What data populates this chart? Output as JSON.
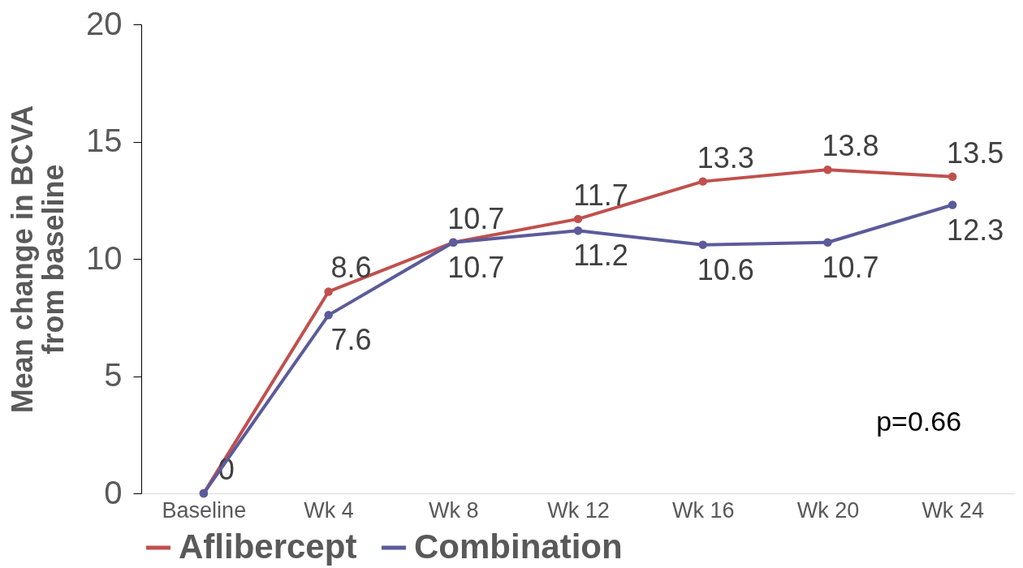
{
  "chart_data": {
    "type": "line",
    "ylabel": "Mean change in BCVA from baseline",
    "categories": [
      "Baseline",
      "Wk 4",
      "Wk 8",
      "Wk 12",
      "Wk 16",
      "Wk 20",
      "Wk 24"
    ],
    "series": [
      {
        "name": "Aflibercept",
        "color": "#c0504d",
        "values": [
          0,
          8.6,
          10.7,
          11.7,
          13.3,
          13.8,
          13.5
        ],
        "value_labels": [
          "0",
          "8.6",
          "10.7",
          "11.7",
          "13.3",
          "13.8",
          "13.5"
        ]
      },
      {
        "name": "Combination",
        "color": "#5b5b9b",
        "values": [
          0,
          7.6,
          10.7,
          11.2,
          10.6,
          10.7,
          12.3
        ],
        "value_labels": [
          null,
          "7.6",
          "10.7",
          "11.2",
          "10.6",
          "10.7",
          "12.3"
        ]
      }
    ],
    "ylim": [
      0,
      20
    ],
    "yticks": [
      0,
      5,
      10,
      15,
      20
    ],
    "grid": false,
    "legend": "bottom",
    "marker": "circle",
    "line_style": "solid",
    "annotations": [
      "p=0.66"
    ]
  }
}
